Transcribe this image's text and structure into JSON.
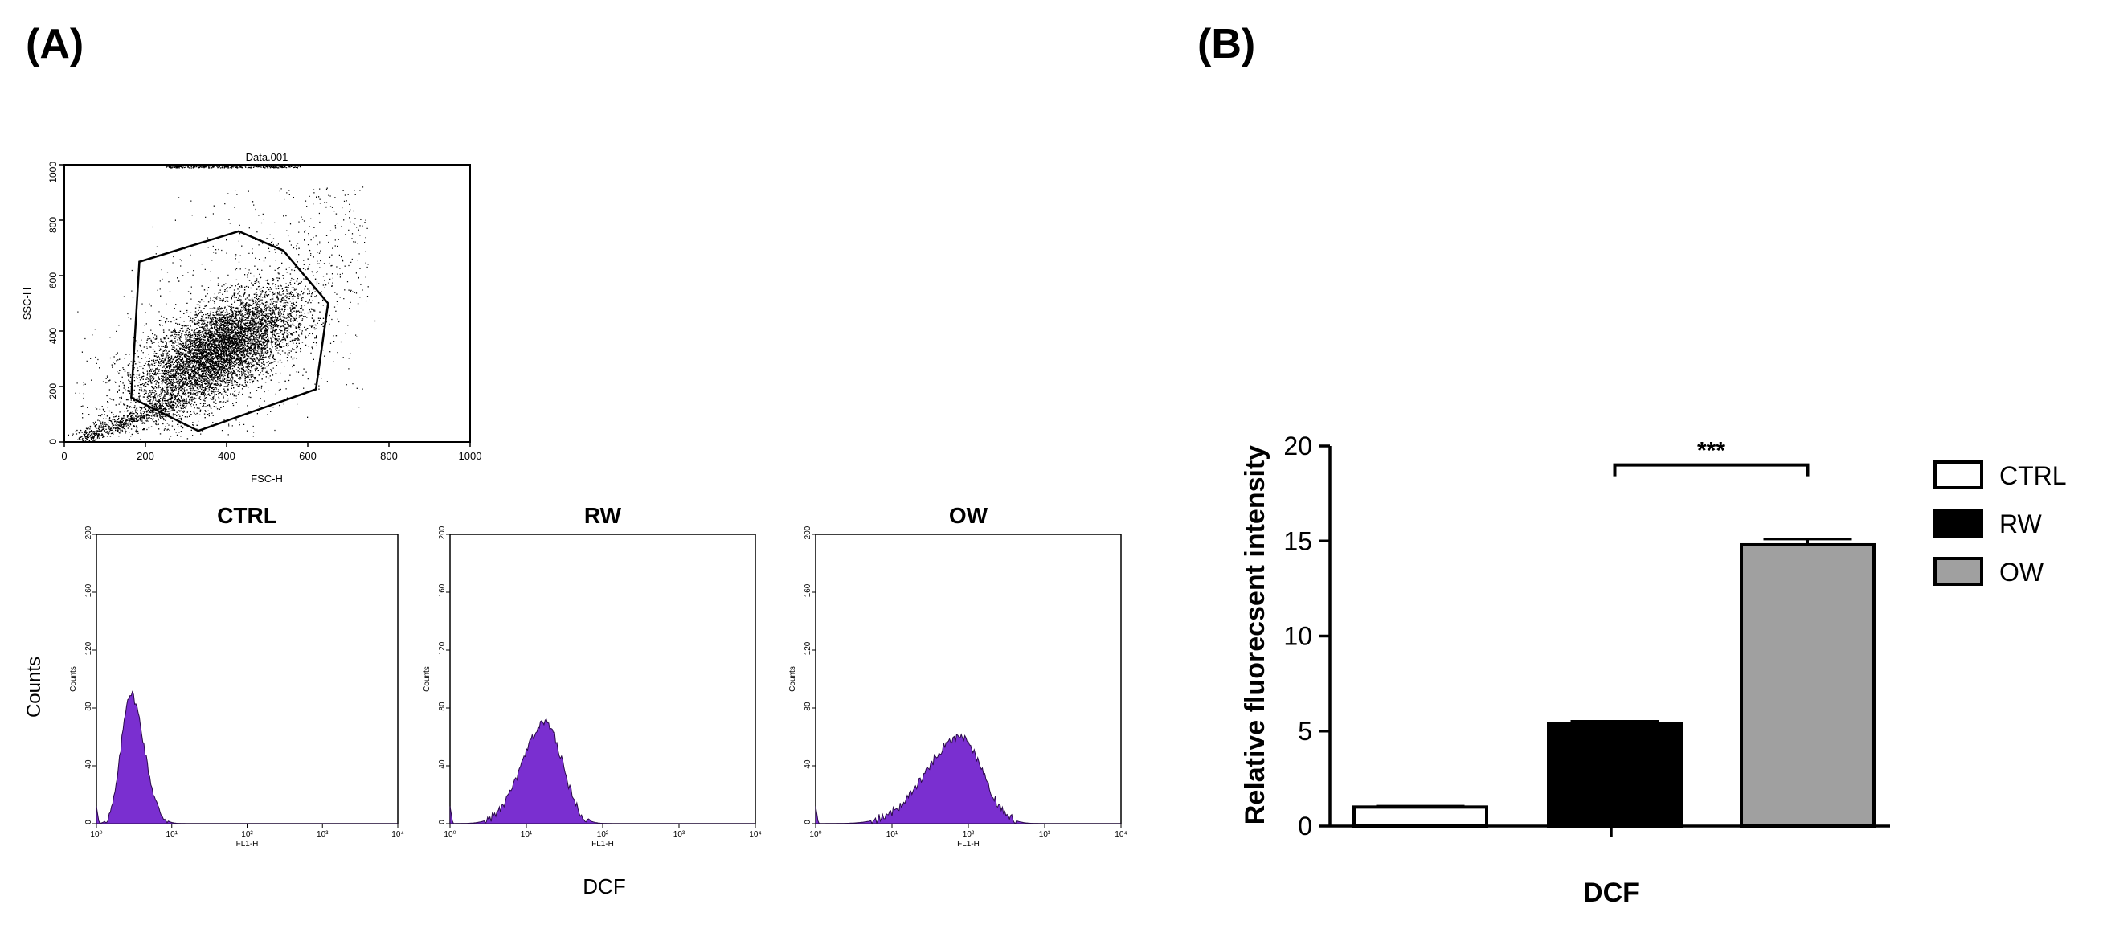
{
  "colors": {
    "histogram_fill": "#7a2fd0",
    "gray_bar": "#a0a0a0",
    "black": "#000000",
    "white": "#ffffff"
  },
  "figure": {
    "panel_a_label": "(A)",
    "panel_b_label": "(B)"
  },
  "panel_a": {
    "scatter": {
      "title": "Data.001",
      "xlabel": "FSC-H",
      "ylabel": "SSC-H",
      "xticks": [
        "0",
        "200",
        "400",
        "600",
        "800",
        "1000"
      ],
      "yticks": [
        "0",
        "200",
        "400",
        "600",
        "800",
        "1000"
      ],
      "xlim": [
        0,
        1000
      ],
      "ylim": [
        0,
        1000
      ],
      "gate_polygon": [
        [
          185,
          650
        ],
        [
          430,
          760
        ],
        [
          540,
          690
        ],
        [
          650,
          500
        ],
        [
          620,
          190
        ],
        [
          330,
          40
        ],
        [
          165,
          160
        ]
      ]
    },
    "histograms": {
      "shared_ylabel": "Counts",
      "shared_xlabel": "DCF",
      "axis_xlabel": "FL1-H",
      "xticks": [
        "10⁰",
        "10¹",
        "10²",
        "10³",
        "10⁴"
      ],
      "yticks": [
        "0",
        "40",
        "80",
        "120",
        "160",
        "200"
      ],
      "yaxis_label": "Counts",
      "panels": [
        {
          "title": "CTRL",
          "peak_log10": 0.45,
          "peak_counts": 90,
          "sd_left": 0.12,
          "sd_right": 0.18
        },
        {
          "title": "RW",
          "peak_log10": 1.25,
          "peak_counts": 70,
          "sd_left": 0.3,
          "sd_right": 0.22
        },
        {
          "title": "OW",
          "peak_log10": 1.9,
          "peak_counts": 60,
          "sd_left": 0.45,
          "sd_right": 0.28
        }
      ]
    }
  },
  "chart_data": [
    {
      "type": "scatter",
      "title": "Data.001",
      "xlabel": "FSC-H",
      "ylabel": "SSC-H",
      "xlim": [
        0,
        1000
      ],
      "ylim": [
        0,
        1000
      ],
      "description_cluster_center": [
        380,
        330
      ]
    },
    {
      "type": "bar",
      "title": "",
      "xlabel": "DCF",
      "ylabel": "Relative fluorecsent intensity",
      "ylim": [
        0,
        20
      ],
      "yticks": [
        "0",
        "5",
        "10",
        "15",
        "20"
      ],
      "categories": [
        "CTRL",
        "RW",
        "OW"
      ],
      "series": [
        {
          "name": "CTRL",
          "value": 1.0,
          "error": 0.05,
          "fill": "#ffffff"
        },
        {
          "name": "RW",
          "value": 5.4,
          "error": 0.12,
          "fill": "#000000"
        },
        {
          "name": "OW",
          "value": 14.8,
          "error": 0.3,
          "fill": "#a0a0a0"
        }
      ],
      "legend": [
        "CTRL",
        "RW",
        "OW"
      ],
      "legend_position": "top-right",
      "significance": {
        "label": "***",
        "from": "RW",
        "to": "OW"
      }
    }
  ]
}
